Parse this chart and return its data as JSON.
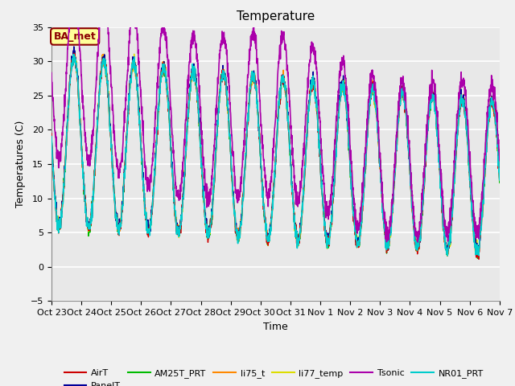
{
  "title": "Temperature",
  "xlabel": "Time",
  "ylabel": "Temperatures (C)",
  "ylim": [
    -5,
    35
  ],
  "tick_labels": [
    "Oct 23",
    "Oct 24",
    "Oct 25",
    "Oct 26",
    "Oct 27",
    "Oct 28",
    "Oct 29",
    "Oct 30",
    "Oct 31",
    "Nov 1",
    "Nov 2",
    "Nov 3",
    "Nov 4",
    "Nov 5",
    "Nov 6",
    "Nov 7"
  ],
  "annotation_text": "BA_met",
  "annotation_color": "#8B0000",
  "annotation_bg": "#FFFF99",
  "series": {
    "AirT": {
      "color": "#CC0000",
      "lw": 1.0
    },
    "PanelT": {
      "color": "#000099",
      "lw": 1.0
    },
    "AM25T_PRT": {
      "color": "#00BB00",
      "lw": 1.0
    },
    "li75_t": {
      "color": "#FF8800",
      "lw": 1.0
    },
    "li77_temp": {
      "color": "#DDDD00",
      "lw": 1.0
    },
    "Tsonic": {
      "color": "#AA00AA",
      "lw": 1.2
    },
    "NR01_PRT": {
      "color": "#00CCCC",
      "lw": 1.2
    }
  },
  "bg_color": "#E8E8E8",
  "grid_color": "#FFFFFF",
  "title_fontsize": 11,
  "label_fontsize": 9,
  "tick_fontsize": 8
}
